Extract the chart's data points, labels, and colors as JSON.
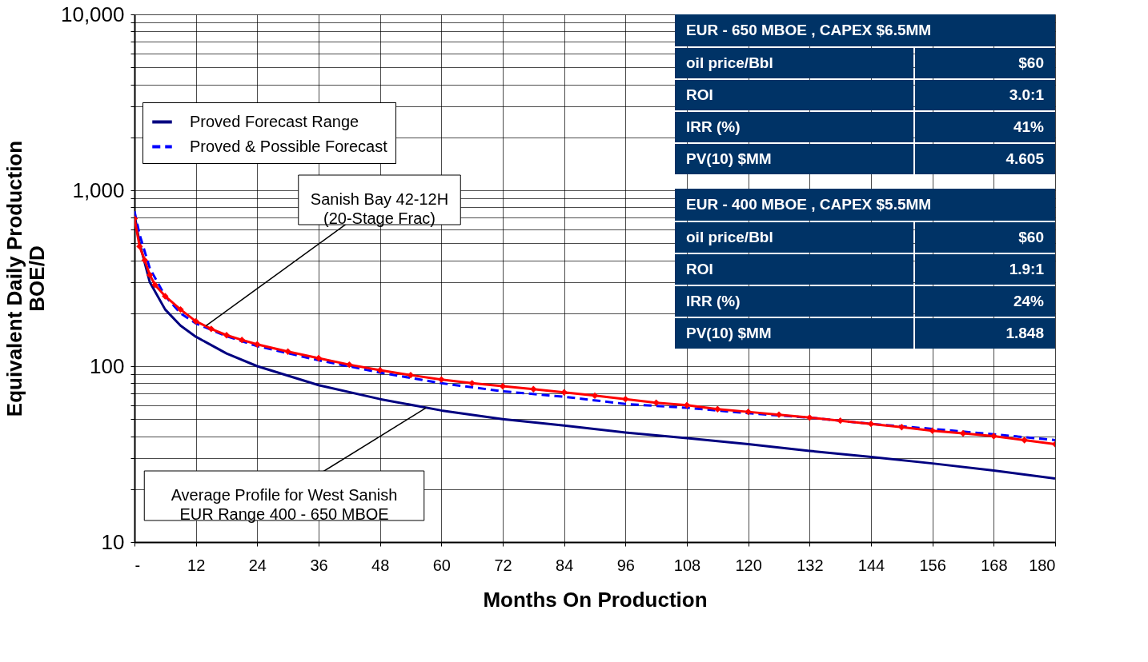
{
  "chart_data": {
    "type": "line",
    "xlabel": "Months On Production",
    "ylabel": "Equivalent Daily Production\nBOE/D",
    "log": "y",
    "grid": true,
    "legend": "top left",
    "xlim": [
      0,
      180
    ],
    "ylim": [
      10,
      10000
    ],
    "xticks": [
      {
        "value": 0,
        "label": "-"
      },
      12,
      24,
      36,
      48,
      60,
      72,
      84,
      96,
      108,
      120,
      132,
      144,
      156,
      168,
      180
    ],
    "yticks": [
      {
        "value": 10,
        "label": "10"
      },
      {
        "value": 20,
        "label": null
      },
      {
        "value": 30,
        "label": null
      },
      {
        "value": 40,
        "label": null
      },
      {
        "value": 50,
        "label": null
      },
      {
        "value": 60,
        "label": null
      },
      {
        "value": 70,
        "label": null
      },
      {
        "value": 80,
        "label": null
      },
      {
        "value": 90,
        "label": null
      },
      {
        "value": 100,
        "label": "100"
      },
      {
        "value": 200,
        "label": null
      },
      {
        "value": 300,
        "label": null
      },
      {
        "value": 400,
        "label": null
      },
      {
        "value": 500,
        "label": null
      },
      {
        "value": 600,
        "label": null
      },
      {
        "value": 700,
        "label": null
      },
      {
        "value": 800,
        "label": null
      },
      {
        "value": 900,
        "label": null
      },
      {
        "value": 1000,
        "label": "1,000"
      },
      {
        "value": 2000,
        "label": null
      },
      {
        "value": 3000,
        "label": null
      },
      {
        "value": 4000,
        "label": null
      },
      {
        "value": 5000,
        "label": null
      },
      {
        "value": 6000,
        "label": null
      },
      {
        "value": 7000,
        "label": null
      },
      {
        "value": 8000,
        "label": null
      },
      {
        "value": 9000,
        "label": null
      },
      {
        "value": 10000,
        "label": "10,000"
      }
    ],
    "series": [
      {
        "name": "Proved Forecast Range",
        "color": "#000080",
        "line_style": "solid",
        "marker": "none",
        "x": [
          0,
          1,
          3,
          6,
          9,
          12,
          18,
          24,
          36,
          48,
          60,
          72,
          84,
          96,
          108,
          120,
          132,
          144,
          156,
          168,
          180
        ],
        "values": [
          730,
          500,
          300,
          210,
          170,
          147,
          118,
          100,
          78,
          65,
          56,
          50,
          46,
          42,
          39,
          36,
          33,
          30.5,
          28,
          25.5,
          23
        ]
      },
      {
        "name": "Proved & Possible Forecast",
        "color": "#0000ff",
        "line_style": "dashed",
        "marker": "none",
        "x": [
          0,
          1,
          3,
          6,
          9,
          12,
          18,
          24,
          36,
          48,
          60,
          72,
          84,
          96,
          108,
          120,
          132,
          144,
          156,
          168,
          180
        ],
        "values": [
          760,
          560,
          360,
          250,
          200,
          175,
          148,
          130,
          108,
          92,
          80,
          72,
          67,
          61,
          58,
          54,
          51,
          47,
          44,
          41,
          38
        ]
      },
      {
        "color": "#ff0000",
        "line_style": "solid",
        "marker": "diamond",
        "x": [
          0,
          1,
          2,
          3,
          4,
          6,
          9,
          12,
          15,
          18,
          21,
          24,
          30,
          36,
          42,
          48,
          54,
          60,
          66,
          72,
          78,
          84,
          90,
          96,
          102,
          108,
          114,
          120,
          126,
          132,
          138,
          144,
          150,
          156,
          162,
          168,
          174,
          180
        ],
        "values": [
          690,
          480,
          400,
          330,
          290,
          250,
          210,
          180,
          163,
          150,
          141,
          133,
          121,
          111,
          102,
          95,
          89,
          84,
          80,
          77,
          74,
          71,
          68,
          65,
          62,
          60,
          57,
          55,
          53,
          51,
          49,
          47,
          45,
          43,
          41.5,
          40,
          38,
          36
        ]
      }
    ],
    "annotations": [
      {
        "text": "Sanish Bay 42-12H\n(20-Stage Frac)",
        "x": 14,
        "y": 170
      },
      {
        "text": "Average Profile for West Sanish\nEUR Range 400 - 650 MBOE",
        "x": 57,
        "y": 58
      },
      "EUR - 650 MBOE , CAPEX $6.5MM",
      "oil price/Bbl",
      "$60",
      "ROI",
      "3.0:1",
      "IRR (%)",
      "41%",
      "PV(10) $MM",
      "4.605",
      "EUR - 400 MBOE , CAPEX $5.5MM",
      "oil price/Bbl",
      "$60",
      "ROI",
      "1.9:1",
      "IRR (%)",
      "24%",
      "PV(10) $MM",
      "1.848"
    ]
  }
}
